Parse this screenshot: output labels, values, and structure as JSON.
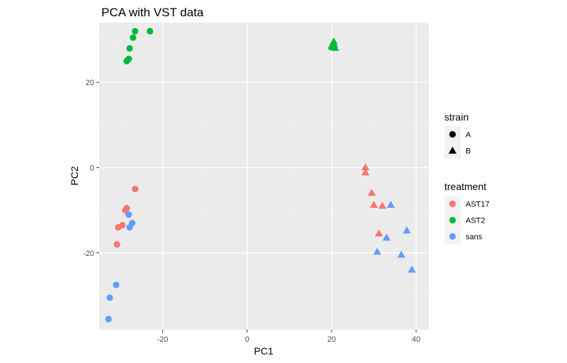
{
  "chart_data": {
    "type": "scatter",
    "title": "PCA with VST data",
    "xlabel": "PC1",
    "ylabel": "PC2",
    "xlim": [
      -35,
      43
    ],
    "ylim": [
      -38,
      34
    ],
    "x_ticks": [
      -20,
      0,
      20,
      40
    ],
    "y_ticks": [
      -20,
      0,
      20
    ],
    "grid": true,
    "legend_position": "right",
    "legends": [
      {
        "title": "strain",
        "key": "strain",
        "entries": [
          {
            "label": "A",
            "shape": "circle"
          },
          {
            "label": "B",
            "shape": "triangle"
          }
        ]
      },
      {
        "title": "treatment",
        "key": "treatment",
        "entries": [
          {
            "label": "AST17",
            "color": "#F8766D"
          },
          {
            "label": "AST2",
            "color": "#00BA38"
          },
          {
            "label": "sans",
            "color": "#619CFF"
          }
        ]
      }
    ],
    "points": [
      {
        "x": -26.5,
        "y": 32.0,
        "strain": "A",
        "treatment": "AST2"
      },
      {
        "x": -23.0,
        "y": 32.0,
        "strain": "A",
        "treatment": "AST2"
      },
      {
        "x": -27.0,
        "y": 30.5,
        "strain": "A",
        "treatment": "AST2"
      },
      {
        "x": -27.8,
        "y": 28.0,
        "strain": "A",
        "treatment": "AST2"
      },
      {
        "x": -28.0,
        "y": 25.5,
        "strain": "A",
        "treatment": "AST2"
      },
      {
        "x": -28.5,
        "y": 25.0,
        "strain": "A",
        "treatment": "AST2"
      },
      {
        "x": 20.0,
        "y": 28.5,
        "strain": "B",
        "treatment": "AST2"
      },
      {
        "x": 20.5,
        "y": 29.5,
        "strain": "B",
        "treatment": "AST2"
      },
      {
        "x": 20.3,
        "y": 29.0,
        "strain": "B",
        "treatment": "AST2"
      },
      {
        "x": 20.8,
        "y": 28.0,
        "strain": "B",
        "treatment": "AST2"
      },
      {
        "x": 20.2,
        "y": 28.2,
        "strain": "B",
        "treatment": "AST2"
      },
      {
        "x": 20.6,
        "y": 28.8,
        "strain": "B",
        "treatment": "AST2"
      },
      {
        "x": -26.5,
        "y": -5.0,
        "strain": "A",
        "treatment": "AST17"
      },
      {
        "x": -28.5,
        "y": -9.5,
        "strain": "A",
        "treatment": "AST17"
      },
      {
        "x": -28.8,
        "y": -10.0,
        "strain": "A",
        "treatment": "AST17"
      },
      {
        "x": -29.5,
        "y": -13.5,
        "strain": "A",
        "treatment": "AST17"
      },
      {
        "x": -30.5,
        "y": -14.0,
        "strain": "A",
        "treatment": "AST17"
      },
      {
        "x": -30.8,
        "y": -18.0,
        "strain": "A",
        "treatment": "AST17"
      },
      {
        "x": -28.0,
        "y": -11.0,
        "strain": "A",
        "treatment": "sans"
      },
      {
        "x": -27.2,
        "y": -13.0,
        "strain": "A",
        "treatment": "sans"
      },
      {
        "x": -27.8,
        "y": -14.0,
        "strain": "A",
        "treatment": "sans"
      },
      {
        "x": -31.0,
        "y": -27.5,
        "strain": "A",
        "treatment": "sans"
      },
      {
        "x": -32.5,
        "y": -30.5,
        "strain": "A",
        "treatment": "sans"
      },
      {
        "x": -32.8,
        "y": -35.5,
        "strain": "A",
        "treatment": "sans"
      },
      {
        "x": 28.0,
        "y": 0.0,
        "strain": "B",
        "treatment": "AST17"
      },
      {
        "x": 28.0,
        "y": -1.2,
        "strain": "B",
        "treatment": "AST17"
      },
      {
        "x": 29.5,
        "y": -6.0,
        "strain": "B",
        "treatment": "AST17"
      },
      {
        "x": 30.0,
        "y": -8.8,
        "strain": "B",
        "treatment": "AST17"
      },
      {
        "x": 32.0,
        "y": -9.0,
        "strain": "B",
        "treatment": "AST17"
      },
      {
        "x": 31.2,
        "y": -15.5,
        "strain": "B",
        "treatment": "AST17"
      },
      {
        "x": 34.0,
        "y": -8.8,
        "strain": "B",
        "treatment": "sans"
      },
      {
        "x": 37.8,
        "y": -14.8,
        "strain": "B",
        "treatment": "sans"
      },
      {
        "x": 33.0,
        "y": -16.5,
        "strain": "B",
        "treatment": "sans"
      },
      {
        "x": 30.8,
        "y": -19.8,
        "strain": "B",
        "treatment": "sans"
      },
      {
        "x": 36.5,
        "y": -20.5,
        "strain": "B",
        "treatment": "sans"
      },
      {
        "x": 39.0,
        "y": -24.0,
        "strain": "B",
        "treatment": "sans"
      }
    ]
  }
}
